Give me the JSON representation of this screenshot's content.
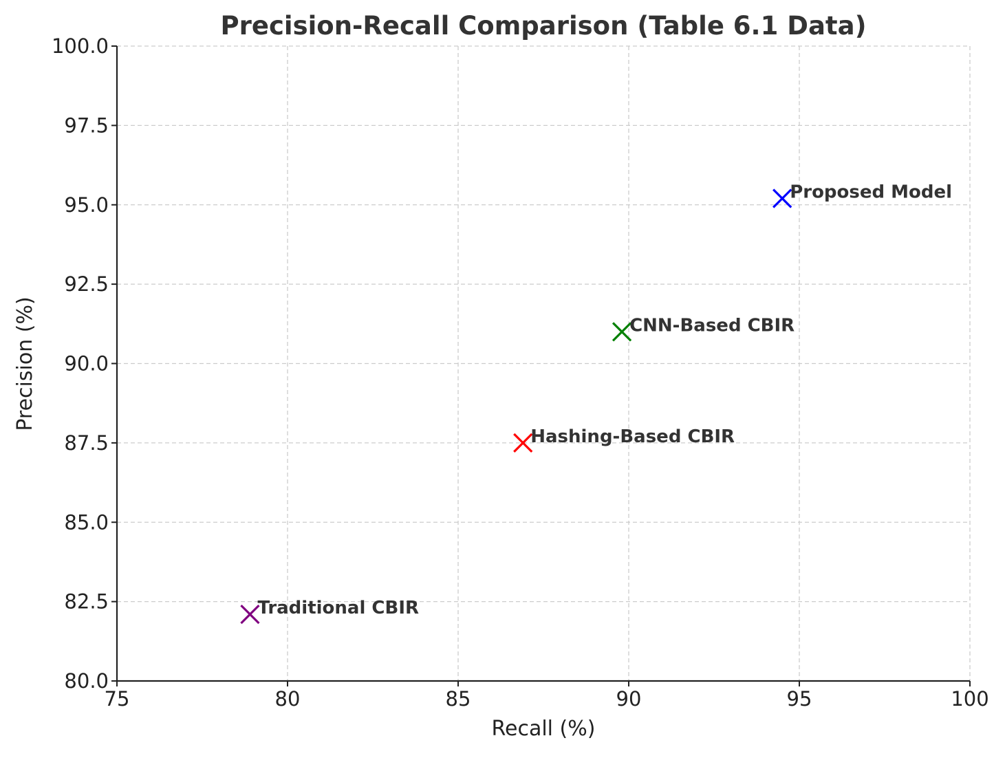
{
  "chart_data": {
    "type": "scatter",
    "title": "Precision-Recall Comparison (Table 6.1 Data)",
    "xlabel": "Recall (%)",
    "ylabel": "Precision (%)",
    "xlim": [
      75,
      100
    ],
    "ylim": [
      80,
      100
    ],
    "xticks": [
      75,
      80,
      85,
      90,
      95,
      100
    ],
    "xtick_labels": [
      "75",
      "80",
      "85",
      "90",
      "95",
      "100"
    ],
    "yticks": [
      80,
      82.5,
      85,
      87.5,
      90,
      92.5,
      95,
      97.5,
      100
    ],
    "ytick_labels": [
      "80.0",
      "82.5",
      "85.0",
      "87.5",
      "90.0",
      "92.5",
      "95.0",
      "97.5",
      "100.0"
    ],
    "grid": true,
    "marker": "x",
    "points": [
      {
        "label": "Traditional CBIR",
        "x": 78.9,
        "y": 82.1,
        "color": "#800080"
      },
      {
        "label": "Hashing-Based CBIR",
        "x": 86.9,
        "y": 87.5,
        "color": "#ff0000"
      },
      {
        "label": "CNN-Based CBIR",
        "x": 89.8,
        "y": 91.0,
        "color": "#008000"
      },
      {
        "label": "Proposed Model",
        "x": 94.5,
        "y": 95.2,
        "color": "#0000ff"
      }
    ]
  }
}
